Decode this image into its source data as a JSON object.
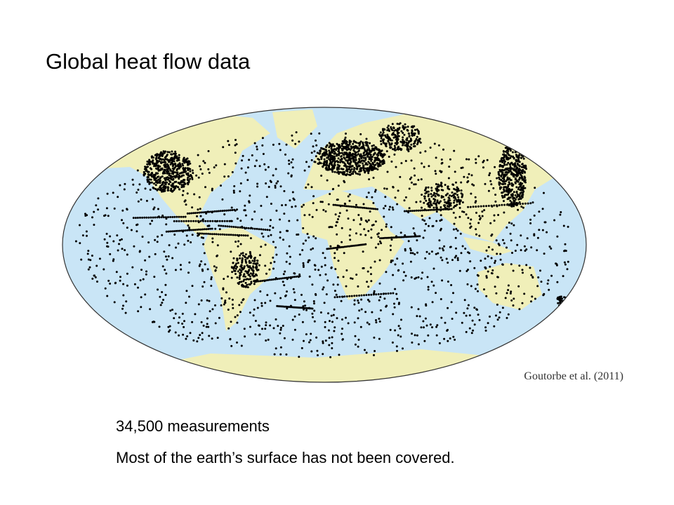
{
  "title": "Global heat flow data",
  "map": {
    "citation": "Goutorbe et al. (2011)"
  },
  "bullets": [
    "34,500 measurements",
    "Most of the earth’s surface has not been covered."
  ]
}
